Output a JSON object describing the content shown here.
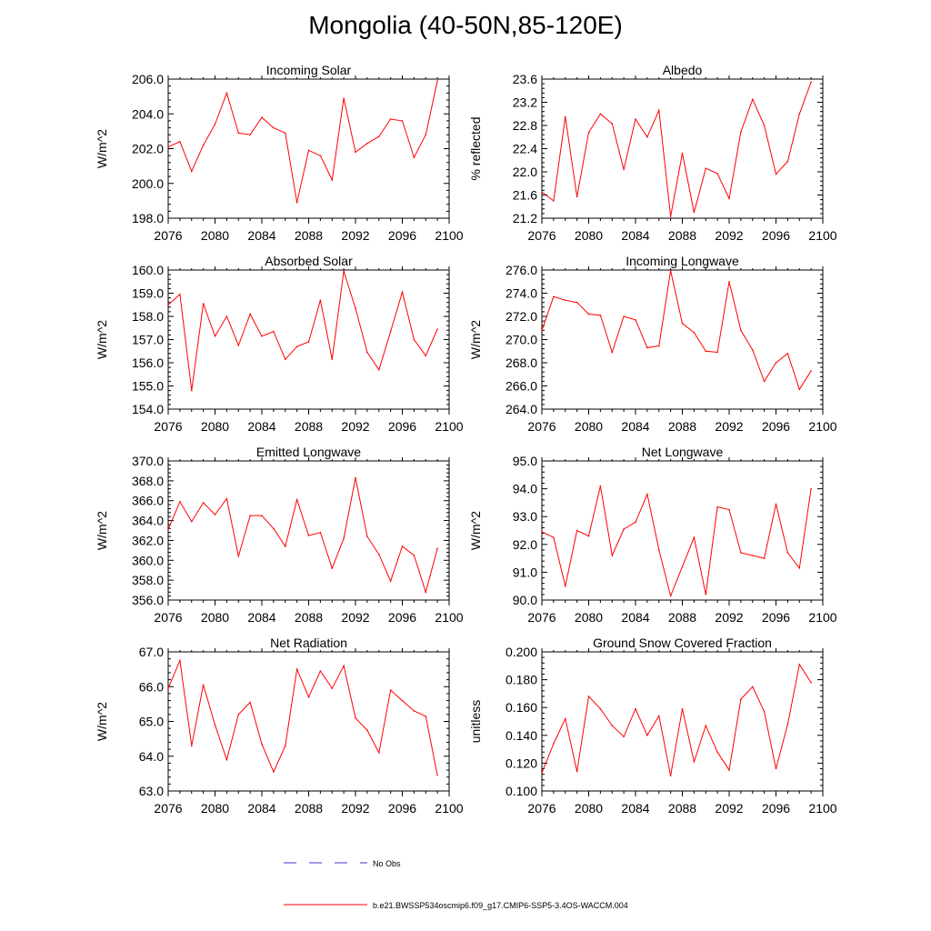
{
  "title": "Mongolia (40-50N,85-120E)",
  "colors": {
    "model_line": "#ff0000",
    "obs_line": "#3b3bd1",
    "axis": "#000000"
  },
  "legend": {
    "obs_label": "No Obs",
    "model_label": "b.e21.BWSSP534oscmip6.f09_g17.CMIP6-SSP5-3.4OS-WACCM.004"
  },
  "chart_data": [
    {
      "type": "line",
      "title": "Incoming Solar",
      "ylabel": "W/m^2",
      "xlim": [
        2076,
        2100
      ],
      "ylim": [
        198.0,
        206.0
      ],
      "yticks": [
        198.0,
        200.0,
        202.0,
        204.0,
        206.0
      ],
      "ytick_labels": [
        "198.0",
        "200.0",
        "202.0",
        "204.0",
        "206.0"
      ],
      "xticks": [
        2076,
        2080,
        2084,
        2088,
        2092,
        2096,
        2100
      ],
      "x": [
        2076,
        2077,
        2078,
        2079,
        2080,
        2081,
        2082,
        2083,
        2084,
        2085,
        2086,
        2087,
        2088,
        2089,
        2090,
        2091,
        2092,
        2093,
        2094,
        2095,
        2096,
        2097,
        2098,
        2099
      ],
      "values": [
        202.1,
        202.4,
        200.7,
        202.2,
        203.4,
        205.2,
        202.9,
        202.8,
        203.8,
        203.2,
        202.9,
        198.9,
        201.9,
        201.6,
        200.2,
        204.9,
        201.8,
        202.3,
        202.7,
        203.7,
        203.6,
        201.5,
        202.8,
        205.9
      ]
    },
    {
      "type": "line",
      "title": "Albedo",
      "ylabel": "% reflected",
      "xlim": [
        2076,
        2100
      ],
      "ylim": [
        21.2,
        23.6
      ],
      "yticks": [
        21.2,
        21.6,
        22.0,
        22.4,
        22.8,
        23.2,
        23.6
      ],
      "ytick_labels": [
        "21.2",
        "21.6",
        "22.0",
        "22.4",
        "22.8",
        "23.2",
        "23.6"
      ],
      "xticks": [
        2076,
        2080,
        2084,
        2088,
        2092,
        2096,
        2100
      ],
      "x": [
        2076,
        2077,
        2078,
        2079,
        2080,
        2081,
        2082,
        2083,
        2084,
        2085,
        2086,
        2087,
        2088,
        2089,
        2090,
        2091,
        2092,
        2093,
        2094,
        2095,
        2096,
        2097,
        2098,
        2099
      ],
      "values": [
        21.65,
        21.5,
        22.95,
        21.57,
        22.68,
        23.0,
        22.83,
        22.04,
        22.91,
        22.6,
        23.06,
        21.23,
        22.32,
        21.3,
        22.06,
        21.97,
        21.54,
        22.69,
        23.25,
        22.8,
        21.96,
        22.18,
        23.0,
        23.55
      ]
    },
    {
      "type": "line",
      "title": "Absorbed Solar",
      "ylabel": "W/m^2",
      "xlim": [
        2076,
        2100
      ],
      "ylim": [
        154.0,
        160.0
      ],
      "yticks": [
        154.0,
        155.0,
        156.0,
        157.0,
        158.0,
        159.0,
        160.0
      ],
      "ytick_labels": [
        "154.0",
        "155.0",
        "156.0",
        "157.0",
        "158.0",
        "159.0",
        "160.0"
      ],
      "xticks": [
        2076,
        2080,
        2084,
        2088,
        2092,
        2096,
        2100
      ],
      "x": [
        2076,
        2077,
        2078,
        2079,
        2080,
        2081,
        2082,
        2083,
        2084,
        2085,
        2086,
        2087,
        2088,
        2089,
        2090,
        2091,
        2092,
        2093,
        2094,
        2095,
        2096,
        2097,
        2098,
        2099
      ],
      "values": [
        158.5,
        158.95,
        154.8,
        158.55,
        157.15,
        158.0,
        156.75,
        158.1,
        157.15,
        157.35,
        156.15,
        156.7,
        156.9,
        158.7,
        156.15,
        159.95,
        158.35,
        156.45,
        155.7,
        157.35,
        159.05,
        157.0,
        156.3,
        157.45
      ]
    },
    {
      "type": "line",
      "title": "Incoming Longwave",
      "ylabel": "W/m^2",
      "xlim": [
        2076,
        2100
      ],
      "ylim": [
        264.0,
        276.0
      ],
      "yticks": [
        264.0,
        266.0,
        268.0,
        270.0,
        272.0,
        274.0,
        276.0
      ],
      "ytick_labels": [
        "264.0",
        "266.0",
        "268.0",
        "270.0",
        "272.0",
        "274.0",
        "276.0"
      ],
      "xticks": [
        2076,
        2080,
        2084,
        2088,
        2092,
        2096,
        2100
      ],
      "x": [
        2076,
        2077,
        2078,
        2079,
        2080,
        2081,
        2082,
        2083,
        2084,
        2085,
        2086,
        2087,
        2088,
        2089,
        2090,
        2091,
        2092,
        2093,
        2094,
        2095,
        2096,
        2097,
        2098,
        2099
      ],
      "values": [
        270.8,
        273.7,
        273.4,
        273.2,
        272.2,
        272.1,
        268.9,
        272.0,
        271.7,
        269.3,
        269.45,
        275.95,
        271.4,
        270.6,
        269.0,
        268.9,
        275.0,
        270.8,
        269.1,
        266.4,
        268.0,
        268.8,
        265.7,
        267.3
      ]
    },
    {
      "type": "line",
      "title": "Emitted Longwave",
      "ylabel": "W/m^2",
      "xlim": [
        2076,
        2100
      ],
      "ylim": [
        356.0,
        370.0
      ],
      "yticks": [
        356.0,
        358.0,
        360.0,
        362.0,
        364.0,
        366.0,
        368.0,
        370.0
      ],
      "ytick_labels": [
        "356.0",
        "358.0",
        "360.0",
        "362.0",
        "364.0",
        "366.0",
        "368.0",
        "370.0"
      ],
      "xticks": [
        2076,
        2080,
        2084,
        2088,
        2092,
        2096,
        2100
      ],
      "x": [
        2076,
        2077,
        2078,
        2079,
        2080,
        2081,
        2082,
        2083,
        2084,
        2085,
        2086,
        2087,
        2088,
        2089,
        2090,
        2091,
        2092,
        2093,
        2094,
        2095,
        2096,
        2097,
        2098,
        2099
      ],
      "values": [
        363.1,
        365.9,
        363.9,
        365.8,
        364.6,
        366.2,
        360.4,
        364.5,
        364.5,
        363.2,
        361.4,
        366.1,
        362.5,
        362.8,
        359.2,
        362.2,
        368.3,
        362.4,
        360.6,
        357.9,
        361.4,
        360.5,
        356.8,
        361.2
      ]
    },
    {
      "type": "line",
      "title": "Net Longwave",
      "ylabel": "W/m^2",
      "xlim": [
        2076,
        2100
      ],
      "ylim": [
        90.0,
        95.0
      ],
      "yticks": [
        90.0,
        91.0,
        92.0,
        93.0,
        94.0,
        95.0
      ],
      "ytick_labels": [
        "90.0",
        "91.0",
        "92.0",
        "93.0",
        "94.0",
        "95.0"
      ],
      "xticks": [
        2076,
        2080,
        2084,
        2088,
        2092,
        2096,
        2100
      ],
      "x": [
        2076,
        2077,
        2078,
        2079,
        2080,
        2081,
        2082,
        2083,
        2084,
        2085,
        2086,
        2087,
        2088,
        2089,
        2090,
        2091,
        2092,
        2093,
        2094,
        2095,
        2096,
        2097,
        2098,
        2099
      ],
      "values": [
        92.45,
        92.25,
        90.5,
        92.5,
        92.3,
        94.1,
        91.6,
        92.55,
        92.8,
        93.8,
        91.8,
        90.15,
        91.2,
        92.25,
        90.2,
        93.35,
        93.25,
        91.7,
        91.6,
        91.5,
        93.45,
        91.7,
        91.15,
        94.0
      ]
    },
    {
      "type": "line",
      "title": "Net Radiation",
      "ylabel": "W/m^2",
      "xlim": [
        2076,
        2100
      ],
      "ylim": [
        63.0,
        67.0
      ],
      "yticks": [
        63.0,
        64.0,
        65.0,
        66.0,
        67.0
      ],
      "ytick_labels": [
        "63.0",
        "64.0",
        "65.0",
        "66.0",
        "67.0"
      ],
      "xticks": [
        2076,
        2080,
        2084,
        2088,
        2092,
        2096,
        2100
      ],
      "x": [
        2076,
        2077,
        2078,
        2079,
        2080,
        2081,
        2082,
        2083,
        2084,
        2085,
        2086,
        2087,
        2088,
        2089,
        2090,
        2091,
        2092,
        2093,
        2094,
        2095,
        2096,
        2097,
        2098,
        2099
      ],
      "values": [
        65.95,
        66.75,
        64.3,
        66.05,
        64.9,
        63.9,
        65.2,
        65.55,
        64.35,
        63.55,
        64.3,
        66.5,
        65.7,
        66.45,
        65.95,
        66.6,
        65.1,
        64.75,
        64.1,
        65.9,
        65.6,
        65.3,
        65.15,
        63.45
      ]
    },
    {
      "type": "line",
      "title": "Ground Snow Covered Fraction",
      "ylabel": "unitless",
      "xlim": [
        2076,
        2100
      ],
      "ylim": [
        0.1,
        0.2
      ],
      "yticks": [
        0.1,
        0.12,
        0.14,
        0.16,
        0.18,
        0.2
      ],
      "ytick_labels": [
        "0.100",
        "0.120",
        "0.140",
        "0.160",
        "0.180",
        "0.200"
      ],
      "xticks": [
        2076,
        2080,
        2084,
        2088,
        2092,
        2096,
        2100
      ],
      "x": [
        2076,
        2077,
        2078,
        2079,
        2080,
        2081,
        2082,
        2083,
        2084,
        2085,
        2086,
        2087,
        2088,
        2089,
        2090,
        2091,
        2092,
        2093,
        2094,
        2095,
        2096,
        2097,
        2098,
        2099
      ],
      "values": [
        0.113,
        0.134,
        0.152,
        0.114,
        0.168,
        0.159,
        0.147,
        0.139,
        0.159,
        0.14,
        0.154,
        0.111,
        0.159,
        0.121,
        0.147,
        0.128,
        0.115,
        0.166,
        0.175,
        0.157,
        0.116,
        0.148,
        0.191,
        0.178
      ]
    }
  ]
}
